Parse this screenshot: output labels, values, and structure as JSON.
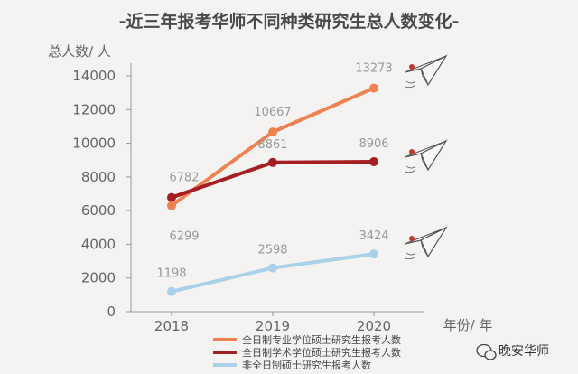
{
  "chart_data": {
    "type": "line",
    "title": "-近三年报考华师不同种类研究生总人数变化-",
    "ylabel": "总人数/ 人",
    "xlabel": "年份/ 年",
    "categories": [
      "2018",
      "2019",
      "2020"
    ],
    "ylim": [
      0,
      14000
    ],
    "yticks": [
      0,
      2000,
      4000,
      6000,
      8000,
      10000,
      12000,
      14000
    ],
    "grid": false,
    "legend_position": "bottom-center",
    "series": [
      {
        "name": "全日制专业学位硕士研究生报考人数",
        "values": [
          6299,
          10667,
          13273
        ],
        "color": "#ee8250"
      },
      {
        "name": "全日制学术学位硕士研究生报考人数",
        "values": [
          6782,
          8861,
          8906
        ],
        "color": "#a51e22"
      },
      {
        "name": "非全日制硕士研究生报考人数",
        "values": [
          1198,
          2598,
          3424
        ],
        "color": "#a9d1ea"
      }
    ]
  },
  "watermark": {
    "text": "晚安华师",
    "icon": "wechat-icon"
  }
}
